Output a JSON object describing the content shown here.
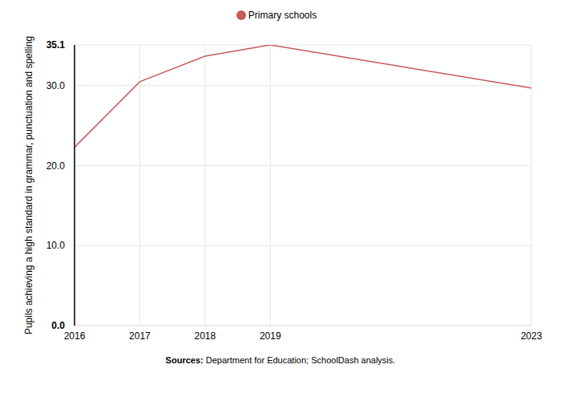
{
  "chart_data": {
    "type": "line",
    "y_label": "Pupils achieving a high standard in grammar, punctuation and spelling",
    "source_label": "Sources:",
    "source": "Department for Education; SchoolDash analysis.",
    "x": [
      2016,
      2017,
      2018,
      2019,
      2023
    ],
    "series": [
      {
        "name": "Primary schools",
        "color": "#c85a5a",
        "values": [
          22.3,
          30.5,
          33.7,
          35.1,
          29.7
        ]
      }
    ],
    "xlim": [
      2016,
      2023
    ],
    "xticks": [
      2016,
      2017,
      2018,
      2019,
      2023
    ],
    "ylim": [
      0,
      35.1
    ],
    "yticks": [
      {
        "value": 0,
        "label": "0.0"
      },
      {
        "value": 10,
        "label": "10.0"
      },
      {
        "value": 20,
        "label": "20.0"
      },
      {
        "value": 30,
        "label": "30.0"
      },
      35.1
    ],
    "grid": true,
    "legend": "top"
  }
}
